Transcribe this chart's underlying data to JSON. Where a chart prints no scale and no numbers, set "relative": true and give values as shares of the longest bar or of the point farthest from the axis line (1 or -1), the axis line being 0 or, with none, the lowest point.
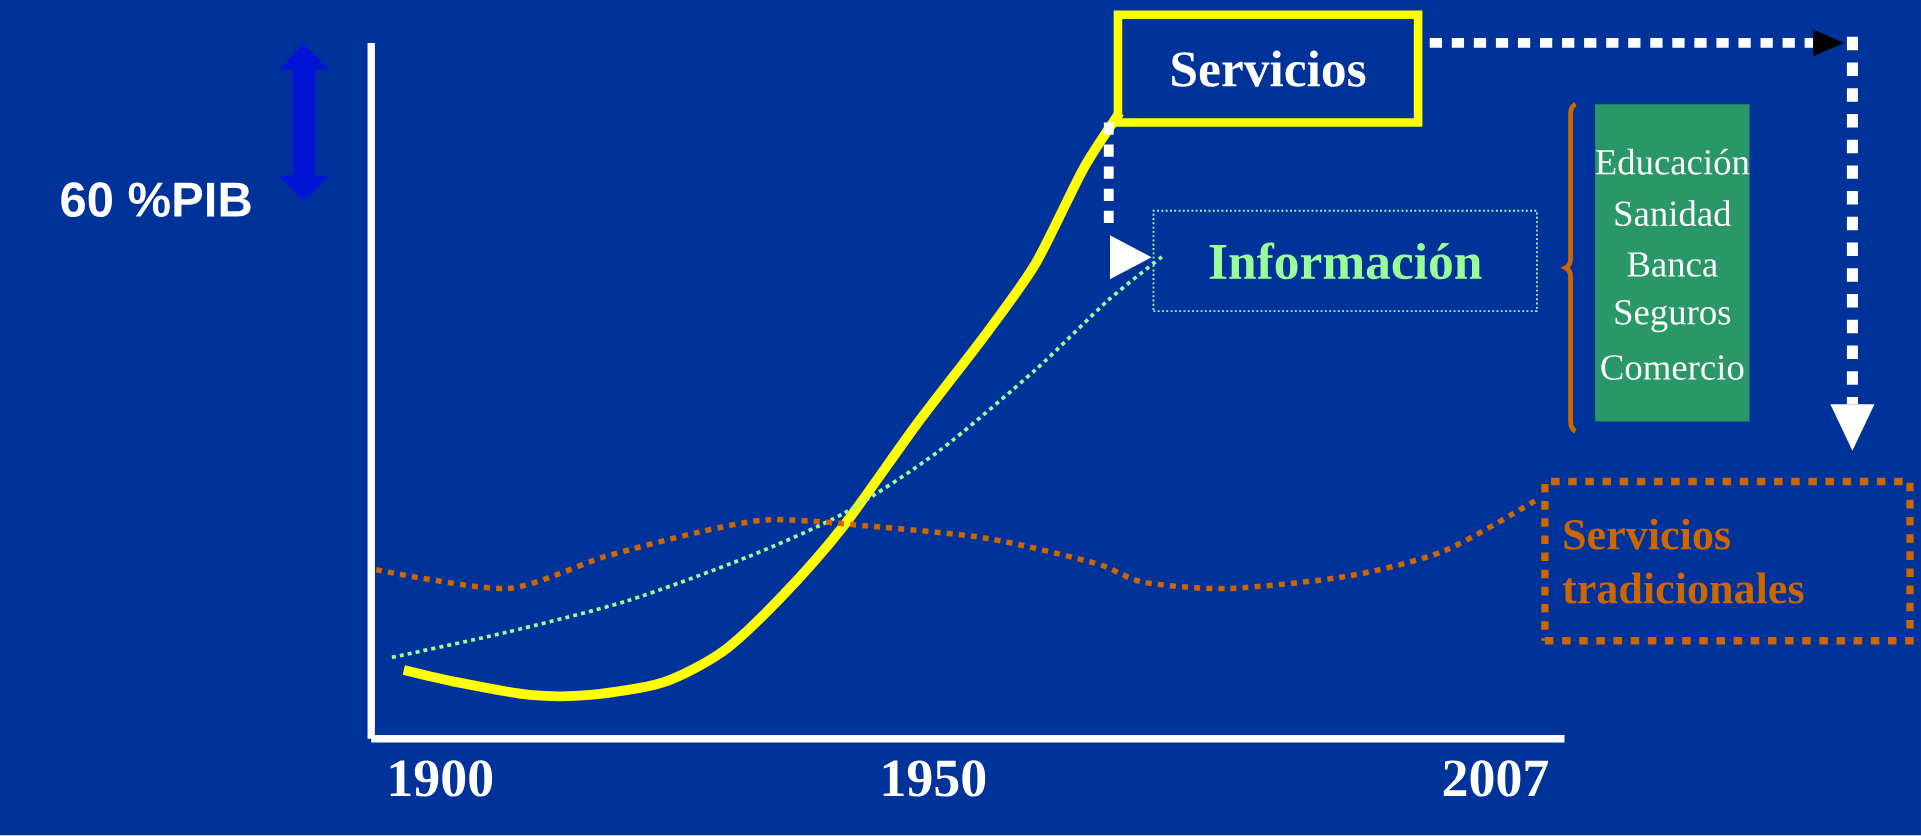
{
  "chart_data": {
    "type": "line",
    "relative": true,
    "ylabel": "60 %PIB",
    "xlim": [
      1893,
      2014
    ],
    "xticks": [
      1900,
      1950,
      2007
    ],
    "grid": false,
    "series": [
      {
        "name": "Servicios",
        "color": "#ffff00",
        "line_style": "solid",
        "x": [
          1896.3,
          1901.8,
          1909.1,
          1915.2,
          1922.6,
          1928.7,
          1934.8,
          1940.9,
          1948.2,
          1955.5,
          1960.4,
          1965.2,
          1968.9
        ],
        "values": [
          0.11,
          0.09,
          0.07,
          0.07,
          0.09,
          0.14,
          0.23,
          0.34,
          0.5,
          0.65,
          0.76,
          0.91,
          1
        ]
      },
      {
        "name": "Información",
        "color": "#99ff99",
        "line_style": "dotted",
        "x": [
          1895.1,
          1906.7,
          1918.9,
          1931.1,
          1940.9,
          1950.6,
          1960.4,
          1967.7,
          1973.2
        ],
        "values": [
          0.13,
          0.17,
          0.22,
          0.29,
          0.36,
          0.46,
          0.59,
          0.7,
          0.77
        ]
      },
      {
        "name": "Servicios tradicionales",
        "color": "#cc6600",
        "line_style": "dotted",
        "x": [
          1893.5,
          1906.7,
          1916.5,
          1926.2,
          1933.5,
          1943.3,
          1955.5,
          1966.5,
          1971.3,
          1979.9,
          1992.1,
          2001.8,
          2011
        ],
        "values": [
          0.27,
          0.24,
          0.29,
          0.33,
          0.35,
          0.34,
          0.32,
          0.28,
          0.25,
          0.24,
          0.26,
          0.3,
          0.38
        ]
      }
    ],
    "annotations": [
      "Educación",
      "Sanidad",
      "Banca",
      "Seguros",
      "Comercio"
    ]
  }
}
